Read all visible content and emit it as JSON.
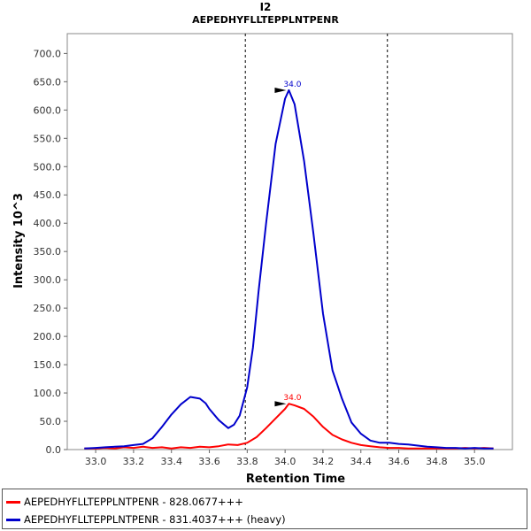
{
  "chart_data": {
    "type": "line",
    "title": "I2",
    "subtitle": "AEPEDHYFLLTEPPLNTPENR",
    "xlabel": "Retention Time",
    "ylabel": "Intensity 10^3",
    "xlim": [
      32.85,
      35.2
    ],
    "ylim": [
      0,
      735
    ],
    "xticks": [
      "33.0",
      "33.2",
      "33.4",
      "33.6",
      "33.8",
      "34.0",
      "34.2",
      "34.4",
      "34.6",
      "34.8",
      "35.0"
    ],
    "yticks": [
      "0.0",
      "50.0",
      "100.0",
      "150.0",
      "200.0",
      "250.0",
      "300.0",
      "350.0",
      "400.0",
      "450.0",
      "500.0",
      "550.0",
      "600.0",
      "650.0",
      "700.0"
    ],
    "boundaries": [
      33.79,
      34.54
    ],
    "grid": false,
    "series": [
      {
        "name": "AEPEDHYFLLTEPPLNTPENR - 828.0677+++",
        "color": "#ff0000",
        "apex_x": 34.02,
        "apex_y": 81,
        "apex_label": "34.0",
        "x": [
          32.94,
          33.0,
          33.05,
          33.1,
          33.15,
          33.2,
          33.25,
          33.3,
          33.35,
          33.4,
          33.45,
          33.5,
          33.55,
          33.6,
          33.65,
          33.7,
          33.75,
          33.8,
          33.85,
          33.9,
          33.95,
          34.0,
          34.02,
          34.05,
          34.1,
          34.15,
          34.2,
          34.25,
          34.3,
          34.35,
          34.4,
          34.45,
          34.5,
          34.55,
          34.6,
          34.65,
          34.7,
          34.75,
          34.8,
          34.85,
          34.9,
          34.95,
          35.0,
          35.05,
          35.1
        ],
        "y": [
          2,
          2,
          3,
          2,
          4,
          3,
          5,
          3,
          4,
          2,
          4,
          3,
          5,
          4,
          6,
          9,
          8,
          12,
          22,
          38,
          55,
          72,
          81,
          78,
          72,
          58,
          40,
          26,
          18,
          12,
          8,
          6,
          4,
          3,
          3,
          2,
          2,
          2,
          2,
          2,
          2,
          3,
          2,
          3,
          2
        ]
      },
      {
        "name": "AEPEDHYFLLTEPPLNTPENR - 831.4037+++ (heavy)",
        "color": "#0000cc",
        "apex_x": 34.02,
        "apex_y": 635,
        "apex_label": "34.0",
        "x": [
          32.94,
          33.0,
          33.05,
          33.1,
          33.15,
          33.2,
          33.25,
          33.3,
          33.35,
          33.4,
          33.45,
          33.5,
          33.55,
          33.58,
          33.6,
          33.65,
          33.7,
          33.73,
          33.76,
          33.8,
          33.83,
          33.86,
          33.9,
          33.95,
          34.0,
          34.02,
          34.05,
          34.1,
          34.15,
          34.2,
          34.25,
          34.3,
          34.35,
          34.4,
          34.45,
          34.5,
          34.55,
          34.6,
          34.65,
          34.7,
          34.75,
          34.8,
          34.85,
          34.9,
          34.95,
          35.0,
          35.05,
          35.1
        ],
        "y": [
          2,
          3,
          4,
          5,
          6,
          8,
          10,
          20,
          40,
          62,
          80,
          93,
          90,
          82,
          72,
          52,
          38,
          44,
          60,
          110,
          180,
          280,
          400,
          540,
          620,
          635,
          610,
          510,
          380,
          240,
          140,
          90,
          48,
          28,
          16,
          12,
          12,
          10,
          9,
          7,
          5,
          4,
          3,
          3,
          2,
          3,
          2,
          2
        ]
      }
    ]
  },
  "legend": {
    "light": "AEPEDHYFLLTEPPLNTPENR - 828.0677+++",
    "heavy": "AEPEDHYFLLTEPPLNTPENR - 831.4037+++ (heavy)"
  }
}
